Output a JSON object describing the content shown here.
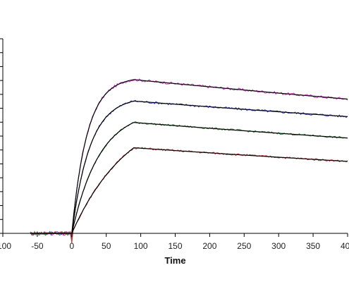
{
  "chart_data": {
    "type": "line",
    "title": "",
    "xlabel": "Time",
    "ylabel": "",
    "xlim": [
      -100,
      400
    ],
    "x_ticks": [
      -100,
      -50,
      0,
      50,
      100,
      150,
      200,
      250,
      300,
      350,
      400
    ],
    "x_tick_labels": [
      "-100",
      "-50",
      "0",
      "50",
      "100",
      "150",
      "200",
      "250",
      "300",
      "350",
      "400"
    ],
    "ylim": [
      0,
      1
    ],
    "y_tick_count": 15,
    "grid": false,
    "legend": "none",
    "baseline_start": -60,
    "association_end": 90,
    "series": [
      {
        "color": "#d63cd0",
        "plateau": 0.79,
        "end_value": 0.69,
        "k": 0.045,
        "noise": 0.007
      },
      {
        "color": "#3a48c8",
        "plateau": 0.68,
        "end_value": 0.6,
        "k": 0.038,
        "noise": 0.006
      },
      {
        "color": "#3a8a3a",
        "plateau": 0.57,
        "end_value": 0.49,
        "k": 0.025,
        "noise": 0.005
      },
      {
        "color": "#c83a3a",
        "plateau": 0.44,
        "end_value": 0.37,
        "k": 0.012,
        "noise": 0.005
      }
    ],
    "fit_color": "#000000"
  }
}
